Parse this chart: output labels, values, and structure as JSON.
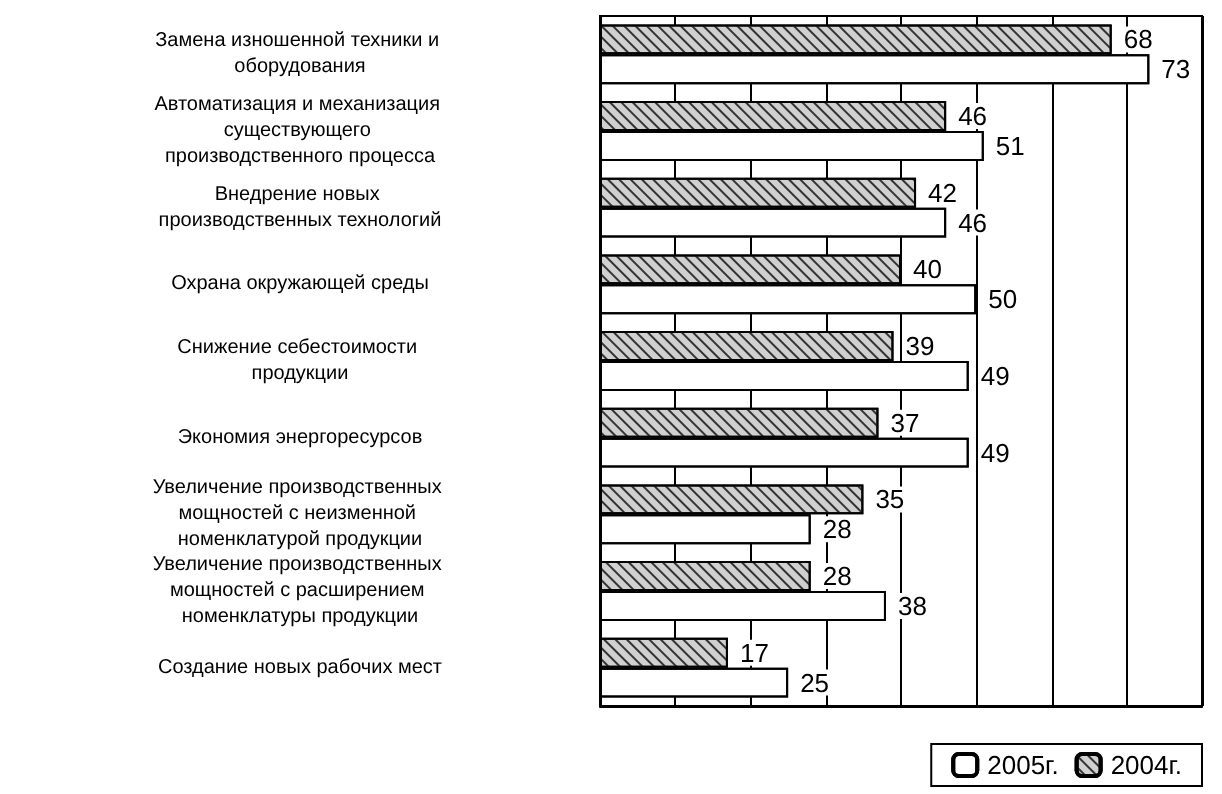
{
  "chart_data": {
    "type": "bar",
    "orientation": "horizontal",
    "categories": [
      "Замена изношенной техники и оборудования",
      "Автоматизация и механизация существующего производственного процесса",
      "Внедрение новых производственных технологий",
      "Охрана окружающей среды",
      "Снижение себестоимости продукции",
      "Экономия энергоресурсов",
      "Увеличение производственных мощностей с неизменной номенклатурой продукции",
      "Увеличение производственных мощностей с расширением номенклатуры продукции",
      "Создание новых рабочих мест"
    ],
    "series": [
      {
        "name": "2004г.",
        "color": "#d0d0d0",
        "values": [
          68,
          46,
          42,
          40,
          39,
          37,
          35,
          28,
          17
        ]
      },
      {
        "name": "2005г.",
        "color": "#ffffff",
        "values": [
          73,
          51,
          46,
          50,
          49,
          49,
          28,
          38,
          25
        ]
      }
    ],
    "xlim": [
      0,
      80
    ],
    "xticks": [
      {
        "value": 0,
        "label": null
      },
      {
        "value": 10,
        "label": null
      },
      {
        "value": 20,
        "label": null
      },
      {
        "value": 30,
        "label": null
      },
      {
        "value": 40,
        "label": null
      },
      {
        "value": 50,
        "label": null
      },
      {
        "value": 60,
        "label": null
      },
      {
        "value": 70,
        "label": null
      },
      {
        "value": 80,
        "label": null
      }
    ],
    "grid": "x",
    "data_labels": true,
    "legend": "bottom right"
  }
}
